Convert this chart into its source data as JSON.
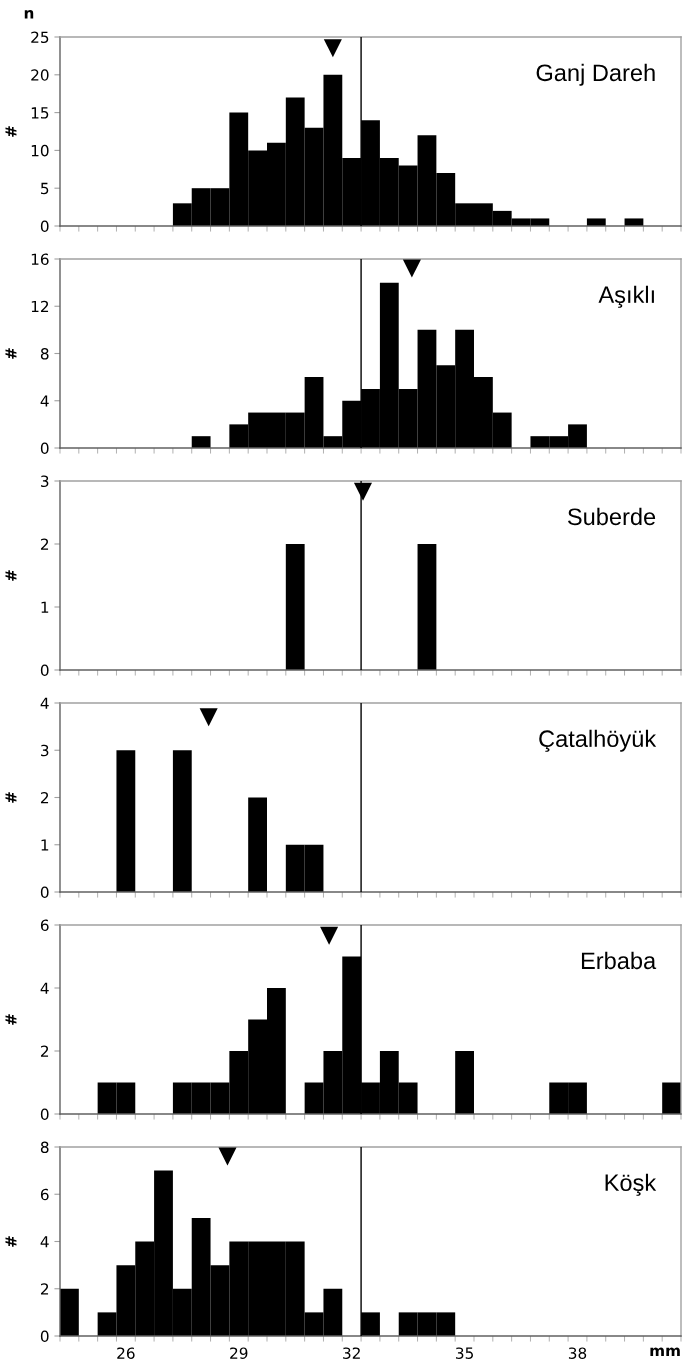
{
  "chart_data": [
    {
      "type": "histogram",
      "title": "Ganj Dareh",
      "ylabel": "#",
      "annotations": [
        "n"
      ],
      "bins": [
        24.25,
        24.75,
        25.25,
        25.75,
        26.25,
        26.75,
        27.25,
        27.75,
        28.25,
        28.75,
        29.25,
        29.75,
        30.25,
        30.75,
        31.25,
        31.75,
        32.25,
        32.75,
        33.25,
        33.75,
        34.25,
        34.75,
        35.25,
        35.75,
        36.25,
        36.75,
        37.25,
        37.75,
        38.25,
        38.75,
        39.25,
        39.75,
        40.25,
        40.75
      ],
      "series": [
        {
          "color": "#000000",
          "values": [
            0,
            0,
            0,
            0,
            0,
            0,
            3,
            5,
            5,
            15,
            10,
            11,
            17,
            13,
            20,
            9,
            14,
            9,
            8,
            12,
            7,
            3,
            3,
            2,
            1,
            1,
            0,
            0,
            1,
            0,
            1,
            0,
            0
          ]
        },
        {
          "type": "scatter",
          "color": "#000000",
          "marker": "triangle",
          "x": [
            31.5
          ],
          "values": [
            23.5
          ]
        }
      ],
      "xlim": [
        24.25,
        40.75
      ],
      "ylim": [
        0,
        25
      ],
      "yticks": [
        0,
        5,
        10,
        15,
        20,
        25
      ],
      "tick_labels": "y",
      "ref_lines": [
        {
          "axis": "x",
          "value": 32.25,
          "color": "#000000"
        }
      ]
    },
    {
      "type": "histogram",
      "title": "Aşıklı",
      "ylabel": "#",
      "bins": [
        24.25,
        24.75,
        25.25,
        25.75,
        26.25,
        26.75,
        27.25,
        27.75,
        28.25,
        28.75,
        29.25,
        29.75,
        30.25,
        30.75,
        31.25,
        31.75,
        32.25,
        32.75,
        33.25,
        33.75,
        34.25,
        34.75,
        35.25,
        35.75,
        36.25,
        36.75,
        37.25,
        37.75,
        38.25,
        38.75,
        39.25,
        39.75,
        40.25,
        40.75
      ],
      "series": [
        {
          "color": "#000000",
          "values": [
            0,
            0,
            0,
            0,
            0,
            0,
            0,
            1,
            0,
            2,
            3,
            3,
            3,
            6,
            1,
            4,
            5,
            14,
            5,
            10,
            7,
            10,
            6,
            3,
            0,
            1,
            1,
            2,
            0,
            0,
            0,
            0,
            0
          ]
        },
        {
          "type": "scatter",
          "color": "#000000",
          "marker": "triangle",
          "x": [
            33.6
          ],
          "values": [
            15.2
          ]
        }
      ],
      "xlim": [
        24.25,
        40.75
      ],
      "ylim": [
        0,
        16
      ],
      "yticks": [
        0,
        4,
        8,
        12,
        16
      ],
      "tick_labels": "y",
      "ref_lines": [
        {
          "axis": "x",
          "value": 32.25,
          "color": "#000000"
        }
      ]
    },
    {
      "type": "histogram",
      "title": "Suberde",
      "ylabel": "#",
      "bins": [
        24.25,
        24.75,
        25.25,
        25.75,
        26.25,
        26.75,
        27.25,
        27.75,
        28.25,
        28.75,
        29.25,
        29.75,
        30.25,
        30.75,
        31.25,
        31.75,
        32.25,
        32.75,
        33.25,
        33.75,
        34.25,
        34.75,
        35.25,
        35.75,
        36.25,
        36.75,
        37.25,
        37.75,
        38.25,
        38.75,
        39.25,
        39.75,
        40.25,
        40.75
      ],
      "series": [
        {
          "color": "#000000",
          "values": [
            0,
            0,
            0,
            0,
            0,
            0,
            0,
            0,
            0,
            0,
            0,
            0,
            2,
            0,
            0,
            0,
            0,
            0,
            0,
            2,
            0,
            0,
            0,
            0,
            0,
            0,
            0,
            0,
            0,
            0,
            0,
            0,
            0
          ]
        },
        {
          "type": "scatter",
          "color": "#000000",
          "marker": "triangle",
          "x": [
            32.3
          ],
          "values": [
            2.83
          ]
        }
      ],
      "xlim": [
        24.25,
        40.75
      ],
      "ylim": [
        0,
        3
      ],
      "yticks": [
        0,
        1,
        2,
        3
      ],
      "tick_labels": "y",
      "ref_lines": [
        {
          "axis": "x",
          "value": 32.25,
          "color": "#000000"
        }
      ]
    },
    {
      "type": "histogram",
      "title": "Çatalhöyük",
      "ylabel": "#",
      "bins": [
        24.25,
        24.75,
        25.25,
        25.75,
        26.25,
        26.75,
        27.25,
        27.75,
        28.25,
        28.75,
        29.25,
        29.75,
        30.25,
        30.75,
        31.25,
        31.75,
        32.25,
        32.75,
        33.25,
        33.75,
        34.25,
        34.75,
        35.25,
        35.75,
        36.25,
        36.75,
        37.25,
        37.75,
        38.25,
        38.75,
        39.25,
        39.75,
        40.25,
        40.75
      ],
      "series": [
        {
          "color": "#000000",
          "values": [
            0,
            0,
            0,
            3,
            0,
            0,
            3,
            0,
            0,
            0,
            2,
            0,
            1,
            1,
            0,
            0,
            0,
            0,
            0,
            0,
            0,
            0,
            0,
            0,
            0,
            0,
            0,
            0,
            0,
            0,
            0,
            0,
            0
          ]
        },
        {
          "type": "scatter",
          "color": "#000000",
          "marker": "triangle",
          "x": [
            28.2
          ],
          "values": [
            3.7
          ]
        }
      ],
      "xlim": [
        24.25,
        40.75
      ],
      "ylim": [
        0,
        4
      ],
      "yticks": [
        0,
        1,
        2,
        3,
        4
      ],
      "tick_labels": "y",
      "ref_lines": [
        {
          "axis": "x",
          "value": 32.25,
          "color": "#000000"
        }
      ]
    },
    {
      "type": "histogram",
      "title": "Erbaba",
      "ylabel": "#",
      "bins": [
        24.25,
        24.75,
        25.25,
        25.75,
        26.25,
        26.75,
        27.25,
        27.75,
        28.25,
        28.75,
        29.25,
        29.75,
        30.25,
        30.75,
        31.25,
        31.75,
        32.25,
        32.75,
        33.25,
        33.75,
        34.25,
        34.75,
        35.25,
        35.75,
        36.25,
        36.75,
        37.25,
        37.75,
        38.25,
        38.75,
        39.25,
        39.75,
        40.25,
        40.75
      ],
      "series": [
        {
          "color": "#000000",
          "values": [
            0,
            0,
            1,
            1,
            0,
            0,
            1,
            1,
            1,
            2,
            3,
            4,
            0,
            1,
            2,
            5,
            1,
            2,
            1,
            0,
            0,
            2,
            0,
            0,
            0,
            0,
            1,
            1,
            0,
            0,
            0,
            0,
            1
          ]
        },
        {
          "type": "scatter",
          "color": "#000000",
          "marker": "triangle",
          "x": [
            31.4
          ],
          "values": [
            5.66
          ]
        }
      ],
      "xlim": [
        24.25,
        40.75
      ],
      "ylim": [
        0,
        6
      ],
      "yticks": [
        0,
        2,
        4,
        6
      ],
      "tick_labels": "y",
      "ref_lines": [
        {
          "axis": "x",
          "value": 32.25,
          "color": "#000000"
        }
      ]
    },
    {
      "type": "histogram",
      "title": "Köşk",
      "ylabel": "#",
      "xlabel": "mm",
      "bins": [
        24.25,
        24.75,
        25.25,
        25.75,
        26.25,
        26.75,
        27.25,
        27.75,
        28.25,
        28.75,
        29.25,
        29.75,
        30.25,
        30.75,
        31.25,
        31.75,
        32.25,
        32.75,
        33.25,
        33.75,
        34.25,
        34.75,
        35.25,
        35.75,
        36.25,
        36.75,
        37.25,
        37.75,
        38.25,
        38.75,
        39.25,
        39.75,
        40.25,
        40.75
      ],
      "series": [
        {
          "color": "#000000",
          "values": [
            2,
            0,
            1,
            3,
            4,
            7,
            2,
            5,
            3,
            4,
            4,
            4,
            4,
            1,
            2,
            0,
            1,
            0,
            1,
            1,
            1,
            0,
            0,
            0,
            0,
            0,
            0,
            0,
            0,
            0,
            0,
            0,
            0
          ]
        },
        {
          "type": "scatter",
          "color": "#000000",
          "marker": "triangle",
          "x": [
            28.7
          ],
          "values": [
            7.6
          ]
        }
      ],
      "xlim": [
        24.25,
        40.75
      ],
      "xticks": [
        26,
        29,
        32,
        35,
        38
      ],
      "ylim": [
        0,
        8
      ],
      "yticks": [
        0,
        2,
        4,
        6,
        8
      ],
      "ref_lines": [
        {
          "axis": "x",
          "value": 32.25,
          "color": "#000000"
        }
      ]
    }
  ]
}
